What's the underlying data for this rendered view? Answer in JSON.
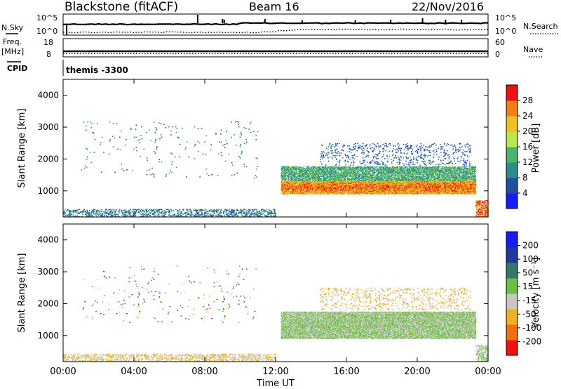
{
  "header": {
    "station": "Blackstone (fitACF)",
    "beam": "Beam 16",
    "date": "22/Nov/2016"
  },
  "noise_panel": {
    "left_label": "N.Sky",
    "right_label": "N.Search",
    "left_ticks": [
      "10^5",
      "10^0"
    ],
    "right_ticks": [
      "10^5",
      "10^0"
    ]
  },
  "freq_panel": {
    "left_label_line1": "Freq.",
    "left_label_line2": "[MHz]",
    "right_label": "Nave",
    "left_ticks": [
      "18",
      "8"
    ],
    "right_ticks": [
      "60",
      "0"
    ]
  },
  "cpid_panel": {
    "label": "CPID",
    "value": "themis -3300"
  },
  "power_panel": {
    "ylabel": "Slant Range [km]",
    "yticks": [
      "4000",
      "3000",
      "2000",
      "1000"
    ],
    "colorbar_label": "Power [dB]",
    "colorbar_ticks": [
      "28",
      "24",
      "20",
      "16",
      "12",
      "8",
      "4"
    ]
  },
  "velocity_panel": {
    "ylabel": "Slant Range [km]",
    "yticks": [
      "4000",
      "3000",
      "2000",
      "1000"
    ],
    "colorbar_label": "Velocity [m s⁻¹]",
    "colorbar_ticks": [
      "200",
      "100",
      "50",
      "15",
      "-15",
      "-50",
      "-100",
      "-200"
    ]
  },
  "xaxis": {
    "ticks": [
      "00:00",
      "04:00",
      "08:00",
      "12:00",
      "16:00",
      "20:00",
      "00:00"
    ],
    "label": "Time UT"
  },
  "colors": {
    "power_scale": [
      "#1a1aff",
      "#1f4fa0",
      "#2f8a8a",
      "#4bb56e",
      "#b9e84a",
      "#f0c020",
      "#f08010",
      "#f01010"
    ],
    "velocity_scale": [
      "#1a1aff",
      "#1f3a9a",
      "#2f7a6a",
      "#6cc040",
      "#c8c8c0",
      "#f0b020",
      "#f07010",
      "#f01010"
    ]
  },
  "chart_data": [
    {
      "type": "heatmap",
      "title": "Power",
      "x_range_hours": [
        0,
        24
      ],
      "ylim": [
        180,
        4500
      ],
      "colorbar_range": [
        0,
        30
      ],
      "features": [
        {
          "t_start": 0,
          "t_end": 12,
          "range_km": [
            180,
            400
          ],
          "level_db": 8
        },
        {
          "t_start": 12.3,
          "t_end": 23.3,
          "range_km": [
            900,
            1300
          ],
          "level_db": 26
        },
        {
          "t_start": 12.3,
          "t_end": 23.3,
          "range_km": [
            1300,
            1700
          ],
          "level_db": 12
        },
        {
          "t_start": 15,
          "t_end": 23,
          "range_km": [
            1800,
            2600
          ],
          "level_db": 6
        }
      ]
    },
    {
      "type": "heatmap",
      "title": "Velocity",
      "x_range_hours": [
        0,
        24
      ],
      "ylim": [
        180,
        4500
      ],
      "colorbar_range": [
        -200,
        200
      ],
      "features": [
        {
          "t_start": 0,
          "t_end": 12,
          "range_km": [
            180,
            400
          ],
          "velocity": -40
        },
        {
          "t_start": 12.3,
          "t_end": 23.3,
          "range_km": [
            900,
            1700
          ],
          "velocity": 0
        },
        {
          "t_start": 15,
          "t_end": 23,
          "range_km": [
            1800,
            2600
          ],
          "velocity": -60
        }
      ]
    }
  ]
}
